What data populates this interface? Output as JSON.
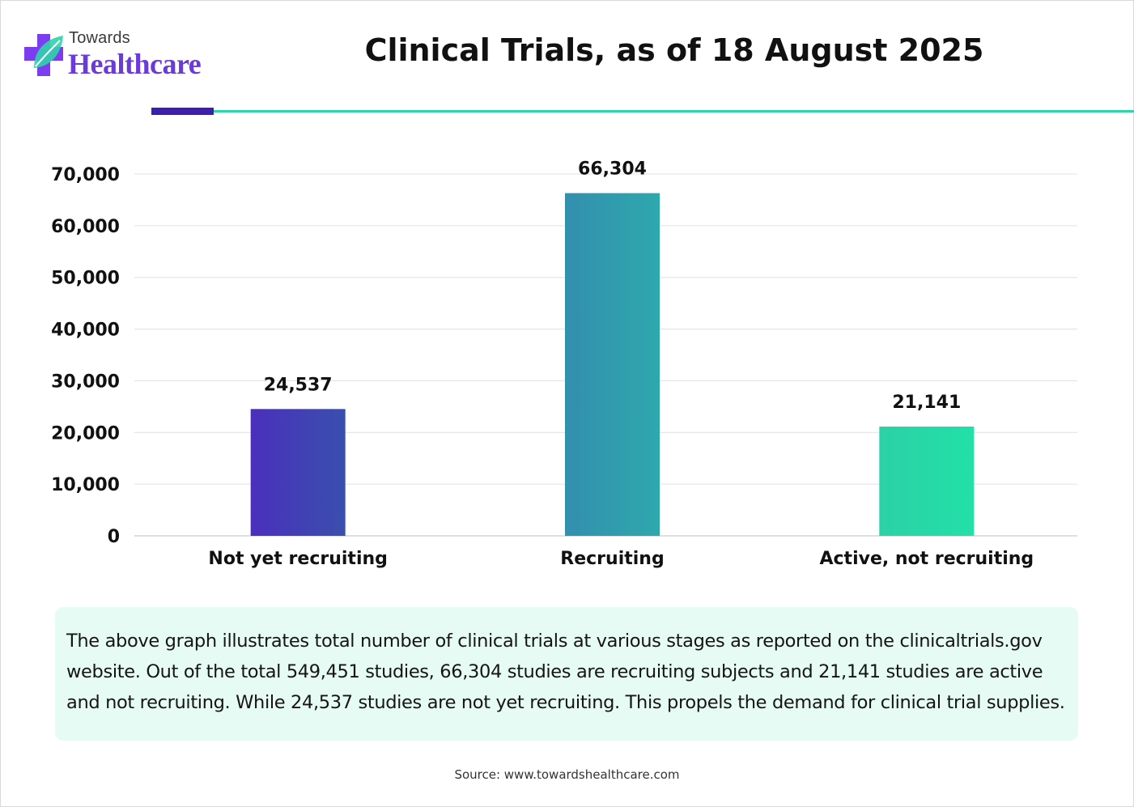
{
  "brand": {
    "top": "Towards",
    "main": "Healthcare",
    "icon": "medical-cross-leaf-icon"
  },
  "title": "Clinical Trials, as of 18 August 2025",
  "colors": {
    "accent_dark": "#3d1fb0",
    "accent_teal": "#2fd3ac",
    "bars": [
      [
        "#4a2fbd",
        "#3a4fae"
      ],
      [
        "#338fae",
        "#2ea8ad"
      ],
      [
        "#2bd1a6",
        "#22e0a8"
      ]
    ],
    "info_bg": "#e5fbf3"
  },
  "chart_data": {
    "type": "bar",
    "categories": [
      "Not yet recruiting",
      "Recruiting",
      "Active, not recruiting"
    ],
    "values": [
      24537,
      66304,
      21141
    ],
    "value_labels": [
      "24,537",
      "66,304",
      "21,141"
    ],
    "yticks": [
      0,
      10000,
      20000,
      30000,
      40000,
      50000,
      60000,
      70000
    ],
    "ytick_labels": [
      "0",
      "10,000",
      "20,000",
      "30,000",
      "40,000",
      "50,000",
      "60,000",
      "70,000"
    ],
    "ylim": [
      0,
      70000
    ],
    "grid": true,
    "title": "",
    "xlabel": "",
    "ylabel": ""
  },
  "info": {
    "text": "The above graph illustrates total number of clinical trials at various stages as reported on the clinicaltrials.gov website. Out of the total 549,451 studies, 66,304 studies are recruiting subjects and 21,141 studies are active and not recruiting. While 24,537 studies are not yet recruiting. This propels the demand for clinical trial supplies."
  },
  "source": "Source: www.towardshealthcare.com"
}
